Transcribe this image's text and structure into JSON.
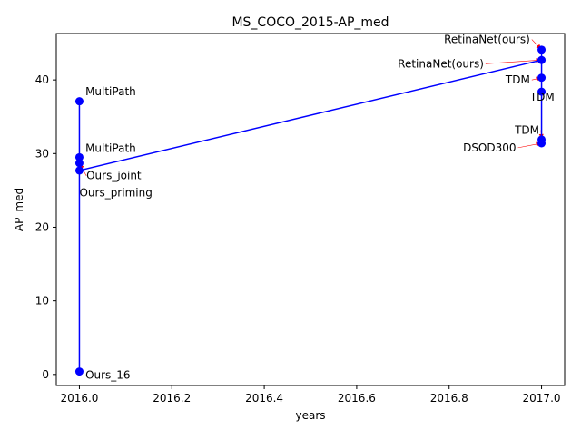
{
  "chart_data": {
    "type": "line",
    "title": "MS_COCO_2015-AP_med",
    "xlabel": "years",
    "ylabel": "AP_med",
    "xlim": [
      2015.95,
      2017.05
    ],
    "ylim": [
      -1.5,
      46.3
    ],
    "xticks": [
      2016.0,
      2016.2,
      2016.4,
      2016.6,
      2016.8,
      2017.0
    ],
    "xtick_labels": [
      "2016.0",
      "2016.2",
      "2016.4",
      "2016.6",
      "2016.8",
      "2017.0"
    ],
    "yticks": [
      0,
      10,
      20,
      30,
      40
    ],
    "ytick_labels": [
      "0",
      "10",
      "20",
      "30",
      "40"
    ],
    "grid": false,
    "legend": "none",
    "line_color": "#0000ff",
    "marker_color": "#0000ff",
    "annotation_arrow_color": "#ff0000",
    "series": [
      {
        "points": [
          {
            "x": 2016.0,
            "y": 0.4
          },
          {
            "x": 2016.0,
            "y": 37.1
          },
          {
            "x": 2016.0,
            "y": 29.5
          },
          {
            "x": 2016.0,
            "y": 28.7
          },
          {
            "x": 2016.0,
            "y": 27.7
          },
          {
            "x": 2017.0,
            "y": 42.7
          },
          {
            "x": 2017.0,
            "y": 44.1
          },
          {
            "x": 2017.0,
            "y": 40.3
          },
          {
            "x": 2017.0,
            "y": 38.4
          },
          {
            "x": 2017.0,
            "y": 31.9
          },
          {
            "x": 2017.0,
            "y": 31.4
          }
        ]
      }
    ],
    "annotations": [
      {
        "text": "Ours_16",
        "x": 2016.0,
        "y": 0.4,
        "tx": 2016.013,
        "ty": -0.6,
        "ha": "left",
        "arrow": false
      },
      {
        "text": "MultiPath",
        "x": 2016.0,
        "y": 37.1,
        "tx": 2016.013,
        "ty": 37.9,
        "ha": "left",
        "arrow": false
      },
      {
        "text": "MultiPath",
        "x": 2016.0,
        "y": 29.5,
        "tx": 2016.013,
        "ty": 30.2,
        "ha": "left",
        "arrow": false
      },
      {
        "text": "Ours_joint",
        "x": 2016.0,
        "y": 28.7,
        "tx": 2016.015,
        "ty": 26.5,
        "ha": "left",
        "arrow": true
      },
      {
        "text": "Ours_priming",
        "x": 2016.0,
        "y": 27.7,
        "tx": 2016.0,
        "ty": 24.2,
        "ha": "left",
        "arrow": false
      },
      {
        "text": "RetinaNet(ours)",
        "x": 2017.0,
        "y": 44.1,
        "tx": 2016.975,
        "ty": 45.0,
        "ha": "right",
        "arrow": true
      },
      {
        "text": "RetinaNet(ours)",
        "x": 2017.0,
        "y": 42.7,
        "tx": 2016.875,
        "ty": 41.7,
        "ha": "right",
        "arrow": true
      },
      {
        "text": "TDM",
        "x": 2017.0,
        "y": 40.3,
        "tx": 2016.975,
        "ty": 39.5,
        "ha": "right",
        "arrow": true
      },
      {
        "text": "TDM",
        "x": 2017.0,
        "y": 38.4,
        "tx": 2016.975,
        "ty": 37.2,
        "ha": "left",
        "arrow": false
      },
      {
        "text": "TDM",
        "x": 2017.0,
        "y": 31.9,
        "tx": 2016.995,
        "ty": 32.7,
        "ha": "right",
        "arrow": true
      },
      {
        "text": "DSOD300",
        "x": 2017.0,
        "y": 31.4,
        "tx": 2016.945,
        "ty": 30.3,
        "ha": "right",
        "arrow": true
      }
    ]
  }
}
